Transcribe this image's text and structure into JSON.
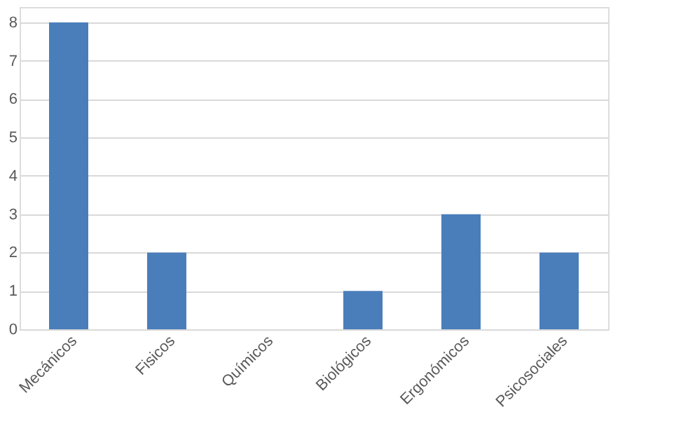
{
  "chart_data": {
    "type": "bar",
    "categories": [
      "Mecánicos",
      "Fisicos",
      "Químicos",
      "Biológicos",
      "Ergonómicos",
      "Psicosociales"
    ],
    "values": [
      8,
      2,
      0,
      1,
      3,
      2
    ],
    "color": "#4a7ebb",
    "ylim": [
      0,
      8.4
    ],
    "yticks": [
      0,
      1,
      2,
      3,
      4,
      5,
      6,
      7,
      8
    ],
    "grid": "y"
  }
}
